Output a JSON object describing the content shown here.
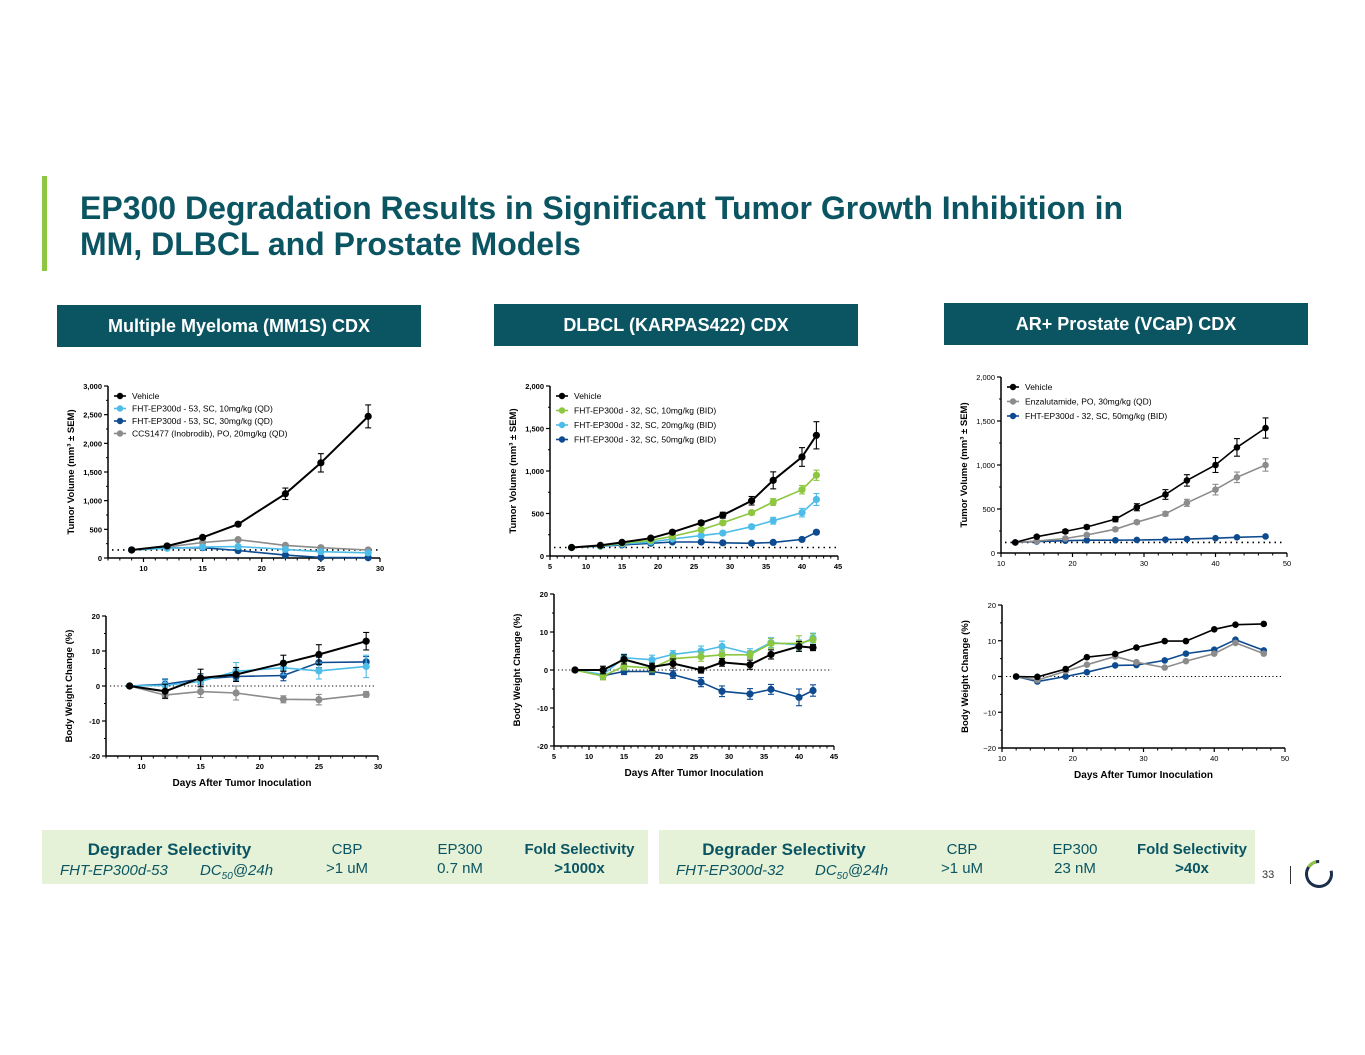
{
  "title": {
    "line1": "EP300 Degradation Results in Significant Tumor Growth Inhibition in",
    "line2": "MM, DLBCL and Prostate Models"
  },
  "colors": {
    "brand_teal": "#0b5563",
    "accent_green": "#8dc63f",
    "selectivity_bg": "#e5f2d8"
  },
  "panels": [
    {
      "header": "Multiple Myeloma (MM1S) CDX"
    },
    {
      "header": "DLBCL (KARPAS422) CDX"
    },
    {
      "header": "AR+ Prostate (VCaP) CDX"
    }
  ],
  "chart_data": [
    {
      "id": "mm-tumor",
      "type": "line",
      "title": "",
      "xlabel": "",
      "ylabel": "Tumor Volume (mm³ ± SEM)",
      "xlim": [
        7,
        30
      ],
      "ylim": [
        0,
        3000
      ],
      "xticks": [
        10,
        15,
        20,
        25,
        30
      ],
      "yticks": [
        0,
        500,
        1000,
        1500,
        2000,
        2500,
        3000
      ],
      "ytick_labels": [
        "0",
        "500",
        "1,000",
        "1,500",
        "2,000",
        "2,500",
        "3,000"
      ],
      "reference_line": 140,
      "legend": "top-left",
      "x": [
        9,
        12,
        15,
        18,
        22,
        25,
        29
      ],
      "series": [
        {
          "name": "Vehicle",
          "color": "#000000",
          "values": [
            140,
            210,
            360,
            590,
            1120,
            1660,
            2470
          ],
          "err": [
            15,
            20,
            30,
            30,
            100,
            160,
            200
          ]
        },
        {
          "name": "FHT-EP300d - 53, SC, 10mg/kg (QD)",
          "color": "#4dbde8",
          "values": [
            140,
            170,
            190,
            200,
            150,
            110,
            90
          ],
          "err": [
            10,
            15,
            20,
            20,
            20,
            15,
            15
          ]
        },
        {
          "name": "FHT-EP300d - 53, SC, 30mg/kg (QD)",
          "color": "#0d4a8f",
          "values": [
            140,
            175,
            180,
            130,
            50,
            10,
            5
          ],
          "err": [
            10,
            15,
            20,
            15,
            10,
            5,
            5
          ]
        },
        {
          "name": "CCS1477 (Inobrodib), PO, 20mg/kg (QD)",
          "color": "#8c8c8c",
          "values": [
            140,
            190,
            270,
            320,
            220,
            180,
            140
          ],
          "err": [
            10,
            15,
            25,
            25,
            20,
            20,
            15
          ]
        }
      ]
    },
    {
      "id": "mm-weight",
      "type": "line",
      "xlabel": "Days After Tumor Inoculation",
      "ylabel": "Body Weight Change (%)",
      "xlim": [
        7,
        30
      ],
      "ylim": [
        -20,
        20
      ],
      "xticks": [
        10,
        15,
        20,
        25,
        30
      ],
      "yticks": [
        -20,
        -10,
        0,
        10,
        20
      ],
      "ytick_labels": [
        "-20",
        "-10",
        "0",
        "10",
        "20"
      ],
      "reference_line": 0,
      "x": [
        9,
        12,
        15,
        18,
        22,
        25,
        29
      ],
      "series": [
        {
          "name": "Vehicle",
          "color": "#000000",
          "values": [
            0,
            -1.5,
            2.3,
            3.3,
            6.5,
            9,
            12.8
          ],
          "err": [
            0,
            2,
            2.5,
            2,
            2.3,
            2.8,
            2.5
          ]
        },
        {
          "name": "FHT-EP300d - 53, SC, 10mg/kg (QD)",
          "color": "#4dbde8",
          "values": [
            0,
            0.2,
            1.3,
            4.2,
            5.2,
            4.3,
            5.6
          ],
          "err": [
            0,
            1.5,
            1.5,
            2.5,
            2,
            2.3,
            3.2
          ]
        },
        {
          "name": "FHT-EP300d - 53, SC, 30mg/kg (QD)",
          "color": "#0d4a8f",
          "values": [
            0,
            0.5,
            2,
            2.7,
            3,
            6.7,
            6.9
          ],
          "err": [
            0,
            1.5,
            1.5,
            1.3,
            1.5,
            1.5,
            1.5
          ]
        },
        {
          "name": "CCS1477 (Inobrodib), PO, 20mg/kg (QD)",
          "color": "#8c8c8c",
          "values": [
            0,
            -2.6,
            -1.6,
            -2,
            -3.8,
            -3.9,
            -2.4
          ],
          "err": [
            0,
            1,
            1.7,
            2,
            1,
            1.5,
            0.8
          ]
        }
      ]
    },
    {
      "id": "dlbcl-tumor",
      "type": "line",
      "xlabel": "",
      "ylabel": "Tumor Volume (mm³ ± SEM)",
      "xlim": [
        5,
        45
      ],
      "ylim": [
        0,
        2000
      ],
      "xticks": [
        5,
        10,
        15,
        20,
        25,
        30,
        35,
        40,
        45
      ],
      "yticks": [
        0,
        500,
        1000,
        1500,
        2000
      ],
      "ytick_labels": [
        "0",
        "500",
        "1,000",
        "1,500",
        "2,000"
      ],
      "reference_line": 100,
      "legend": "top-left",
      "x": [
        8,
        12,
        15,
        19,
        22,
        26,
        29,
        33,
        36,
        40,
        42
      ],
      "series": [
        {
          "name": "Vehicle",
          "color": "#000000",
          "values": [
            100,
            125,
            160,
            210,
            280,
            390,
            480,
            650,
            890,
            1165,
            1420
          ],
          "err": [
            5,
            10,
            10,
            15,
            20,
            25,
            35,
            50,
            100,
            110,
            160
          ]
        },
        {
          "name": "FHT-EP300d - 32, SC, 10mg/kg (BID)",
          "color": "#8dc63f",
          "values": [
            100,
            120,
            150,
            185,
            230,
            310,
            390,
            510,
            635,
            780,
            950
          ],
          "err": [
            5,
            8,
            10,
            12,
            15,
            20,
            25,
            25,
            40,
            50,
            60
          ]
        },
        {
          "name": "FHT-EP300d - 32, SC, 20mg/kg (BID)",
          "color": "#4dbde8",
          "values": [
            100,
            115,
            140,
            165,
            200,
            240,
            270,
            345,
            415,
            510,
            665
          ],
          "err": [
            5,
            8,
            10,
            12,
            15,
            18,
            20,
            25,
            40,
            50,
            70
          ]
        },
        {
          "name": "FHT-EP300d - 32, SC, 50mg/kg (BID)",
          "color": "#0d4a8f",
          "values": [
            100,
            115,
            130,
            150,
            165,
            165,
            155,
            150,
            160,
            195,
            280
          ],
          "err": [
            5,
            8,
            8,
            10,
            10,
            10,
            10,
            10,
            12,
            15,
            20
          ]
        }
      ]
    },
    {
      "id": "dlbcl-weight",
      "type": "line",
      "xlabel": "Days After Tumor Inoculation",
      "ylabel": "Body Weight Change (%)",
      "xlim": [
        5,
        45
      ],
      "ylim": [
        -20,
        20
      ],
      "xticks": [
        5,
        10,
        15,
        20,
        25,
        30,
        35,
        40,
        45
      ],
      "yticks": [
        -20,
        -10,
        0,
        10,
        20
      ],
      "ytick_labels": [
        "-20",
        "-10",
        "0",
        "10",
        "20"
      ],
      "reference_line": 0,
      "x": [
        8,
        12,
        15,
        19,
        22,
        26,
        29,
        33,
        36,
        40,
        42
      ],
      "series": [
        {
          "name": "Vehicle",
          "color": "#000000",
          "values": [
            0,
            0,
            2.8,
            0.8,
            1.7,
            0,
            2,
            1.4,
            4.1,
            6.2,
            5.9
          ],
          "err": [
            0,
            1,
            1.2,
            1,
            1.2,
            0.8,
            1,
            1.2,
            1.2,
            1.3,
            0.8
          ]
        },
        {
          "name": "FHT-EP300d - 32, SC, 10mg/kg (BID)",
          "color": "#8dc63f",
          "values": [
            0,
            -1.6,
            1,
            0.5,
            3,
            3.5,
            4,
            4,
            7,
            7,
            8
          ],
          "err": [
            0,
            1,
            1,
            1,
            1,
            1.2,
            1.2,
            1,
            1.3,
            2,
            1.5
          ]
        },
        {
          "name": "FHT-EP300d - 32, SC, 20mg/kg (BID)",
          "color": "#4dbde8",
          "values": [
            0,
            -1.2,
            3.2,
            2.7,
            4.1,
            5,
            6.2,
            4.4,
            7.2,
            6.6,
            8.4
          ],
          "err": [
            0,
            1,
            1,
            1.2,
            1,
            1.3,
            1.4,
            1.2,
            1.3,
            1.3,
            1.3
          ]
        },
        {
          "name": "FHT-EP300d - 32, SC, 50mg/kg (BID)",
          "color": "#0d4a8f",
          "values": [
            0,
            -1.5,
            -0.4,
            -0.4,
            -1.2,
            -3.2,
            -5.6,
            -6.3,
            -5.1,
            -7.2,
            -5.4
          ],
          "err": [
            0,
            0.8,
            0.8,
            0.8,
            1,
            1.2,
            1.4,
            1.4,
            1.3,
            2.2,
            1.5
          ]
        }
      ]
    },
    {
      "id": "prostate-tumor",
      "type": "line",
      "xlabel": "",
      "ylabel": "Tumor Volume (mm³ ± SEM)",
      "xlim": [
        10,
        50
      ],
      "ylim": [
        0,
        2000
      ],
      "xticks": [
        10,
        20,
        30,
        40,
        50
      ],
      "yticks": [
        0,
        500,
        1000,
        1500,
        2000
      ],
      "ytick_labels": [
        "0",
        "500",
        "1,000",
        "1,500",
        "2,000"
      ],
      "reference_line": 120,
      "legend": "top-left",
      "x": [
        12,
        15,
        19,
        22,
        26,
        29,
        33,
        36,
        40,
        43,
        47
      ],
      "series": [
        {
          "name": "Vehicle",
          "color": "#000000",
          "values": [
            120,
            185,
            245,
            295,
            385,
            520,
            665,
            825,
            1000,
            1200,
            1420
          ],
          "err": [
            10,
            15,
            20,
            20,
            30,
            40,
            55,
            65,
            85,
            100,
            115
          ]
        },
        {
          "name": "Enzalutamide, PO, 30mg/kg (QD)",
          "color": "#8c8c8c",
          "values": [
            120,
            135,
            165,
            205,
            270,
            350,
            445,
            570,
            720,
            860,
            1000
          ],
          "err": [
            8,
            10,
            12,
            15,
            18,
            20,
            25,
            40,
            60,
            60,
            70
          ]
        },
        {
          "name": "FHT-EP300d - 32, SC, 50mg/kg (BID)",
          "color": "#0d4a8f",
          "values": [
            120,
            130,
            140,
            145,
            145,
            148,
            152,
            158,
            168,
            178,
            188
          ],
          "err": [
            5,
            5,
            6,
            6,
            6,
            6,
            6,
            7,
            8,
            8,
            8
          ]
        }
      ]
    },
    {
      "id": "prostate-weight",
      "type": "line",
      "xlabel": "Days After Tumor Inoculation",
      "ylabel": "Body Weight Change (%)",
      "xlim": [
        10,
        50
      ],
      "ylim": [
        -20,
        20
      ],
      "xticks": [
        10,
        20,
        30,
        40,
        50
      ],
      "yticks": [
        -20,
        -10,
        0,
        10,
        20
      ],
      "ytick_labels": [
        "−20",
        "−10",
        "0",
        "10",
        "20"
      ],
      "reference_line": 0,
      "x": [
        12,
        15,
        19,
        22,
        26,
        29,
        33,
        36,
        40,
        43,
        47
      ],
      "series": [
        {
          "name": "Vehicle",
          "color": "#000000",
          "values": [
            0,
            -0.1,
            2.1,
            5.4,
            6.3,
            8.1,
            9.9,
            9.9,
            13.2,
            14.5,
            14.7
          ],
          "err": [
            0,
            0,
            0,
            0,
            0,
            0,
            0,
            0,
            0,
            0,
            0
          ]
        },
        {
          "name": "Enzalutamide, PO, 30mg/kg (QD)",
          "color": "#8c8c8c",
          "values": [
            0,
            -1,
            1.5,
            3.3,
            5.6,
            4,
            2.5,
            4.3,
            6.4,
            9.4,
            6.4
          ],
          "err": [
            0,
            0,
            0,
            0,
            0,
            0,
            0,
            0,
            0,
            0,
            0
          ]
        },
        {
          "name": "FHT-EP300d - 32, SC, 50mg/kg (BID)",
          "color": "#0d4a8f",
          "values": [
            0,
            -1.4,
            0,
            1.2,
            3.1,
            3.2,
            4.5,
            6.4,
            7.5,
            10.3,
            7.3
          ],
          "err": [
            0,
            0,
            0,
            0,
            0,
            0,
            0,
            0,
            0,
            0,
            0
          ]
        }
      ]
    }
  ],
  "selectivity": [
    {
      "heading": "Degrader Selectivity",
      "compound": "FHT-EP300d-53",
      "metric_prefix": "DC",
      "metric_sub": "50",
      "metric_suffix": "@24h",
      "cbp_label": "CBP",
      "cbp_value": ">1 uM",
      "ep300_label": "EP300",
      "ep300_value": "0.7 nM",
      "fold_label": "Fold Selectivity",
      "fold_value": ">1000x"
    },
    {
      "heading": "Degrader Selectivity",
      "compound": "FHT-EP300d-32",
      "metric_prefix": "DC",
      "metric_sub": "50",
      "metric_suffix": "@24h",
      "cbp_label": "CBP",
      "cbp_value": ">1 uM",
      "ep300_label": "EP300",
      "ep300_value": "23 nM",
      "fold_label": "Fold Selectivity",
      "fold_value": ">40x"
    }
  ],
  "footer": {
    "page_number": "33",
    "logo_icon": "circular-progress-logo"
  }
}
